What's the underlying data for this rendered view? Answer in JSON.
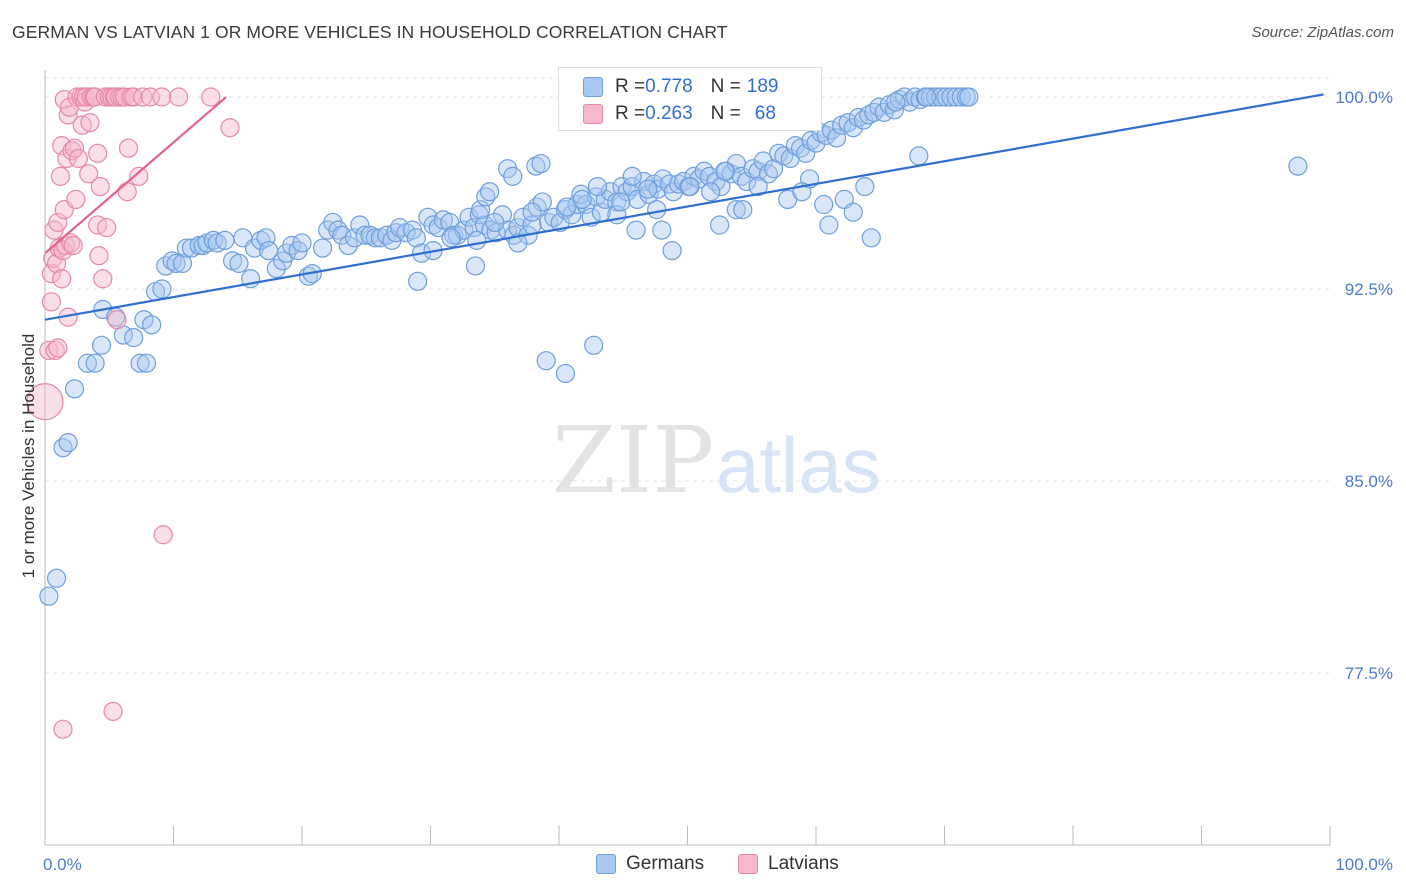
{
  "title": "GERMAN VS LATVIAN 1 OR MORE VEHICLES IN HOUSEHOLD CORRELATION CHART",
  "source": "Source: ZipAtlas.com",
  "watermark": {
    "zip": "ZIP",
    "atlas": "atlas"
  },
  "legend": {
    "rows": [
      {
        "r_label": "R = ",
        "r_value": "0.778",
        "n_label": "N = ",
        "n_value": "189",
        "color": "#a9c8f0",
        "border": "#6f9fdc"
      },
      {
        "r_label": "R = ",
        "r_value": "0.263",
        "n_label": "N = ",
        "n_value": "68",
        "color": "#f7b8cb",
        "border": "#e58aa6"
      }
    ]
  },
  "chart_data": {
    "type": "scatter",
    "title": "GERMAN VS LATVIAN 1 OR MORE VEHICLES IN HOUSEHOLD CORRELATION CHART",
    "xlabel": "",
    "ylabel": "1 or more Vehicles in Household",
    "xlim": [
      0,
      100
    ],
    "ylim": [
      70,
      100.5
    ],
    "x_tick_labels": [
      "0.0%",
      "100.0%"
    ],
    "y_ticks": [
      {
        "value": 100.0,
        "label": "100.0%"
      },
      {
        "value": 92.5,
        "label": "92.5%"
      },
      {
        "value": 85.0,
        "label": "85.0%"
      },
      {
        "value": 77.5,
        "label": "77.5%"
      }
    ],
    "grid": true,
    "legend_position": "bottom",
    "series": [
      {
        "name": "Germans",
        "color": "#a9c8f0",
        "edge": "#6f9fdc",
        "trend": {
          "x": [
            0,
            99.5
          ],
          "y": [
            91.3,
            100.1
          ],
          "color": "#2f6fcf"
        },
        "points": [
          [
            0.3,
            80.5
          ],
          [
            0.9,
            81.2
          ],
          [
            1.4,
            86.3
          ],
          [
            1.8,
            86.5
          ],
          [
            2.3,
            88.6
          ],
          [
            3.3,
            89.6
          ],
          [
            3.9,
            89.6
          ],
          [
            4.4,
            90.3
          ],
          [
            4.5,
            91.7
          ],
          [
            5.5,
            91.4
          ],
          [
            6.1,
            90.7
          ],
          [
            6.9,
            90.6
          ],
          [
            7.4,
            89.6
          ],
          [
            7.9,
            89.6
          ],
          [
            7.7,
            91.3
          ],
          [
            8.3,
            91.1
          ],
          [
            8.6,
            92.4
          ],
          [
            9.1,
            92.5
          ],
          [
            9.4,
            93.4
          ],
          [
            9.9,
            93.6
          ],
          [
            10.2,
            93.5
          ],
          [
            10.7,
            93.5
          ],
          [
            11.0,
            94.1
          ],
          [
            11.4,
            94.1
          ],
          [
            12.0,
            94.2
          ],
          [
            12.3,
            94.2
          ],
          [
            12.6,
            94.3
          ],
          [
            13.1,
            94.4
          ],
          [
            13.4,
            94.3
          ],
          [
            14.0,
            94.4
          ],
          [
            14.6,
            93.6
          ],
          [
            15.1,
            93.5
          ],
          [
            15.4,
            94.5
          ],
          [
            16.0,
            92.9
          ],
          [
            16.3,
            94.1
          ],
          [
            16.8,
            94.4
          ],
          [
            17.2,
            94.5
          ],
          [
            17.4,
            94.0
          ],
          [
            18.0,
            93.3
          ],
          [
            18.5,
            93.6
          ],
          [
            18.8,
            93.9
          ],
          [
            19.2,
            94.2
          ],
          [
            19.7,
            94.0
          ],
          [
            20.0,
            94.3
          ],
          [
            20.5,
            93.0
          ],
          [
            20.8,
            93.1
          ],
          [
            21.6,
            94.1
          ],
          [
            22.0,
            94.8
          ],
          [
            22.4,
            95.1
          ],
          [
            22.8,
            94.8
          ],
          [
            23.1,
            94.6
          ],
          [
            23.6,
            94.2
          ],
          [
            24.1,
            94.5
          ],
          [
            24.5,
            95.0
          ],
          [
            24.9,
            94.6
          ],
          [
            25.3,
            94.6
          ],
          [
            25.7,
            94.5
          ],
          [
            26.1,
            94.5
          ],
          [
            26.6,
            94.6
          ],
          [
            27.0,
            94.4
          ],
          [
            27.3,
            94.7
          ],
          [
            27.6,
            94.9
          ],
          [
            28.1,
            94.7
          ],
          [
            28.6,
            94.8
          ],
          [
            28.9,
            94.5
          ],
          [
            29.3,
            93.9
          ],
          [
            29.8,
            95.3
          ],
          [
            30.2,
            95.0
          ],
          [
            30.6,
            94.9
          ],
          [
            31.0,
            95.2
          ],
          [
            31.5,
            95.1
          ],
          [
            31.8,
            94.6
          ],
          [
            32.1,
            94.6
          ],
          [
            32.6,
            94.8
          ],
          [
            33.0,
            95.3
          ],
          [
            33.4,
            94.9
          ],
          [
            33.8,
            95.4
          ],
          [
            34.2,
            95.0
          ],
          [
            34.7,
            94.8
          ],
          [
            35.1,
            94.7
          ],
          [
            35.6,
            95.4
          ],
          [
            36.0,
            94.8
          ],
          [
            36.5,
            94.6
          ],
          [
            36.8,
            94.9
          ],
          [
            37.2,
            95.3
          ],
          [
            37.6,
            94.6
          ],
          [
            37.9,
            95.0
          ],
          [
            38.3,
            95.7
          ],
          [
            38.7,
            95.9
          ],
          [
            39.2,
            95.1
          ],
          [
            39.6,
            95.3
          ],
          [
            40.1,
            95.1
          ],
          [
            40.5,
            95.6
          ],
          [
            41.0,
            95.4
          ],
          [
            41.4,
            95.8
          ],
          [
            41.7,
            96.2
          ],
          [
            42.1,
            95.8
          ],
          [
            42.5,
            95.3
          ],
          [
            42.9,
            96.1
          ],
          [
            43.3,
            95.5
          ],
          [
            43.6,
            96.0
          ],
          [
            44.0,
            96.3
          ],
          [
            44.5,
            95.9
          ],
          [
            44.9,
            96.5
          ],
          [
            45.3,
            96.3
          ],
          [
            45.7,
            96.5
          ],
          [
            46.1,
            96.0
          ],
          [
            46.6,
            96.7
          ],
          [
            47.0,
            96.2
          ],
          [
            47.4,
            96.6
          ],
          [
            47.7,
            96.4
          ],
          [
            48.1,
            96.8
          ],
          [
            48.6,
            96.6
          ],
          [
            48.9,
            96.3
          ],
          [
            49.3,
            96.6
          ],
          [
            49.7,
            96.7
          ],
          [
            50.1,
            96.5
          ],
          [
            50.5,
            96.9
          ],
          [
            50.9,
            96.8
          ],
          [
            51.3,
            97.1
          ],
          [
            51.7,
            96.9
          ],
          [
            52.2,
            96.7
          ],
          [
            52.6,
            96.5
          ],
          [
            53.0,
            97.1
          ],
          [
            53.4,
            97.0
          ],
          [
            53.8,
            97.4
          ],
          [
            54.2,
            96.9
          ],
          [
            54.6,
            96.7
          ],
          [
            55.1,
            97.2
          ],
          [
            55.5,
            97.1
          ],
          [
            55.9,
            97.5
          ],
          [
            56.3,
            97.0
          ],
          [
            56.7,
            97.2
          ],
          [
            57.1,
            97.8
          ],
          [
            57.5,
            97.7
          ],
          [
            58.0,
            97.6
          ],
          [
            58.4,
            98.1
          ],
          [
            58.8,
            98.0
          ],
          [
            59.2,
            97.8
          ],
          [
            59.6,
            98.3
          ],
          [
            60.0,
            98.2
          ],
          [
            60.4,
            98.6
          ],
          [
            60.8,
            98.5
          ],
          [
            61.2,
            98.7
          ],
          [
            61.6,
            98.4
          ],
          [
            62.0,
            98.9
          ],
          [
            62.5,
            99.0
          ],
          [
            62.9,
            98.8
          ],
          [
            63.3,
            99.2
          ],
          [
            63.7,
            99.1
          ],
          [
            64.1,
            99.3
          ],
          [
            64.5,
            99.4
          ],
          [
            64.9,
            99.6
          ],
          [
            65.3,
            99.4
          ],
          [
            65.7,
            99.7
          ],
          [
            66.1,
            99.5
          ],
          [
            66.5,
            99.9
          ],
          [
            66.9,
            100.0
          ],
          [
            67.3,
            99.8
          ],
          [
            67.7,
            100.0
          ],
          [
            68.1,
            99.9
          ],
          [
            68.5,
            100.0
          ],
          [
            68.9,
            100.0
          ],
          [
            69.3,
            100.0
          ],
          [
            69.7,
            100.0
          ],
          [
            70.1,
            100.0
          ],
          [
            70.5,
            100.0
          ],
          [
            70.9,
            100.0
          ],
          [
            71.3,
            100.0
          ],
          [
            71.7,
            100.0
          ],
          [
            39.0,
            89.7
          ],
          [
            40.5,
            89.2
          ],
          [
            42.7,
            90.3
          ],
          [
            29.0,
            92.8
          ],
          [
            31.6,
            94.5
          ],
          [
            44.5,
            95.4
          ],
          [
            46.0,
            94.8
          ],
          [
            52.9,
            97.1
          ],
          [
            53.8,
            95.6
          ],
          [
            55.5,
            96.5
          ],
          [
            60.6,
            95.8
          ],
          [
            62.2,
            96.0
          ],
          [
            48.0,
            94.8
          ],
          [
            59.5,
            96.8
          ],
          [
            63.8,
            96.5
          ],
          [
            64.3,
            94.5
          ],
          [
            66.2,
            99.8
          ],
          [
            68.0,
            97.7
          ],
          [
            68.6,
            100.0
          ],
          [
            71.9,
            100.0
          ],
          [
            97.5,
            97.3
          ],
          [
            57.8,
            96.0
          ],
          [
            58.9,
            96.3
          ],
          [
            36.8,
            94.3
          ],
          [
            35.0,
            95.1
          ],
          [
            33.5,
            93.4
          ],
          [
            30.2,
            94.0
          ],
          [
            50.2,
            96.5
          ],
          [
            51.8,
            96.3
          ],
          [
            45.7,
            96.9
          ],
          [
            41.8,
            96.0
          ],
          [
            43.0,
            96.5
          ],
          [
            54.3,
            95.6
          ],
          [
            52.5,
            95.0
          ],
          [
            48.8,
            94.0
          ],
          [
            47.6,
            95.6
          ],
          [
            46.9,
            96.4
          ],
          [
            44.8,
            95.9
          ],
          [
            40.6,
            95.7
          ],
          [
            37.9,
            95.5
          ],
          [
            38.2,
            97.3
          ],
          [
            38.6,
            97.4
          ],
          [
            61.0,
            95.0
          ],
          [
            62.9,
            95.5
          ],
          [
            33.6,
            94.4
          ],
          [
            33.9,
            95.6
          ],
          [
            34.3,
            96.1
          ],
          [
            34.6,
            96.3
          ],
          [
            36.0,
            97.2
          ],
          [
            36.4,
            96.9
          ]
        ]
      },
      {
        "name": "Latvians",
        "color": "#f7b8cb",
        "edge": "#e58aa6",
        "trend": {
          "x": [
            0,
            14.1
          ],
          "y": [
            93.9,
            100.0
          ],
          "color": "#e0648c"
        },
        "points": [
          [
            0.0,
            88.1
          ],
          [
            0.3,
            90.1
          ],
          [
            0.5,
            92.0
          ],
          [
            0.5,
            93.1
          ],
          [
            0.6,
            93.7
          ],
          [
            0.7,
            94.8
          ],
          [
            0.8,
            90.1
          ],
          [
            0.9,
            93.5
          ],
          [
            1.0,
            90.2
          ],
          [
            1.0,
            95.1
          ],
          [
            1.1,
            94.1
          ],
          [
            1.2,
            96.9
          ],
          [
            1.3,
            92.9
          ],
          [
            1.3,
            98.1
          ],
          [
            1.4,
            94.0
          ],
          [
            1.5,
            95.6
          ],
          [
            1.5,
            99.9
          ],
          [
            1.6,
            94.2
          ],
          [
            1.7,
            97.6
          ],
          [
            1.8,
            91.4
          ],
          [
            1.8,
            99.3
          ],
          [
            1.9,
            99.6
          ],
          [
            2.0,
            94.3
          ],
          [
            2.1,
            97.9
          ],
          [
            2.2,
            94.2
          ],
          [
            2.3,
            98.0
          ],
          [
            2.4,
            96.0
          ],
          [
            2.5,
            100.0
          ],
          [
            2.6,
            97.6
          ],
          [
            2.8,
            100.0
          ],
          [
            2.9,
            98.9
          ],
          [
            3.0,
            100.0
          ],
          [
            3.1,
            99.8
          ],
          [
            3.2,
            100.0
          ],
          [
            3.4,
            97.0
          ],
          [
            3.5,
            99.0
          ],
          [
            3.6,
            100.0
          ],
          [
            3.8,
            100.0
          ],
          [
            3.9,
            100.0
          ],
          [
            4.1,
            97.8
          ],
          [
            4.1,
            95.0
          ],
          [
            4.2,
            93.8
          ],
          [
            4.3,
            96.5
          ],
          [
            4.5,
            92.9
          ],
          [
            4.7,
            100.0
          ],
          [
            4.8,
            94.9
          ],
          [
            5.0,
            100.0
          ],
          [
            5.2,
            100.0
          ],
          [
            5.4,
            100.0
          ],
          [
            5.5,
            100.0
          ],
          [
            5.6,
            91.3
          ],
          [
            5.8,
            100.0
          ],
          [
            6.0,
            100.0
          ],
          [
            6.2,
            100.0
          ],
          [
            6.4,
            96.3
          ],
          [
            6.5,
            98.0
          ],
          [
            6.7,
            100.0
          ],
          [
            6.9,
            100.0
          ],
          [
            7.3,
            96.9
          ],
          [
            7.6,
            100.0
          ],
          [
            8.2,
            100.0
          ],
          [
            9.1,
            100.0
          ],
          [
            10.4,
            100.0
          ],
          [
            12.9,
            100.0
          ],
          [
            14.4,
            98.8
          ],
          [
            1.4,
            75.3
          ],
          [
            5.3,
            76.0
          ],
          [
            9.2,
            82.9
          ]
        ]
      }
    ]
  }
}
